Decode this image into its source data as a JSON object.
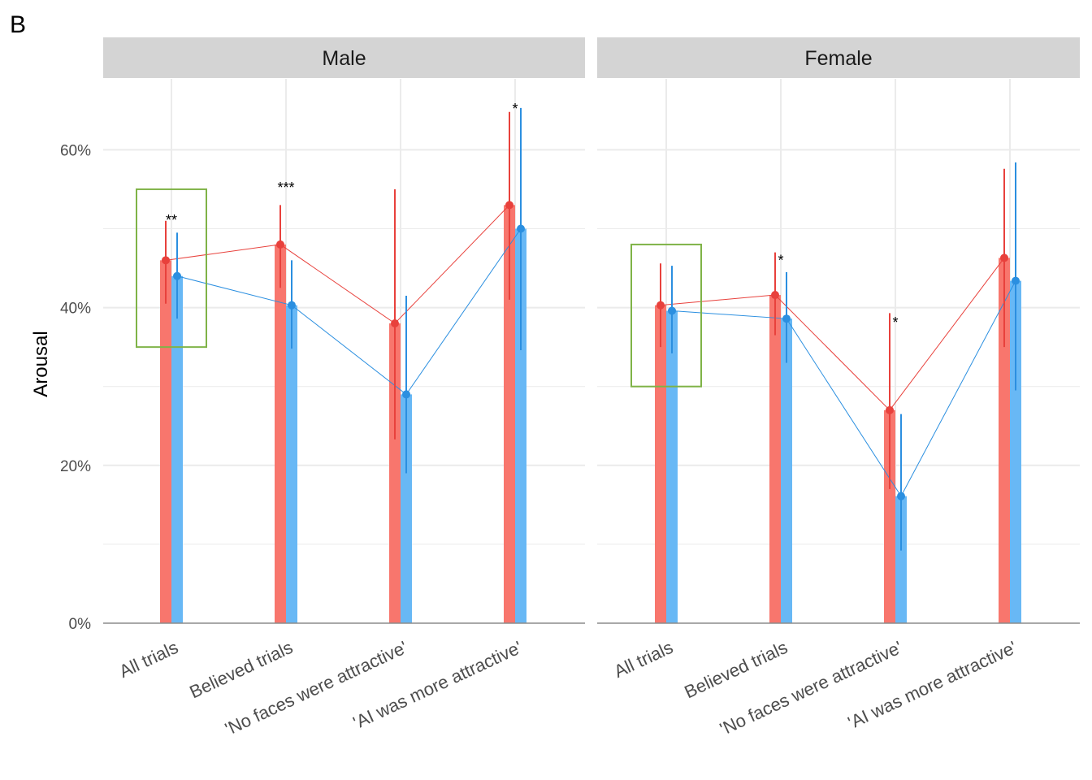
{
  "figure": {
    "panel_label": "B"
  },
  "chart_data": {
    "type": "bar",
    "ylabel": "Arousal",
    "ylim": [
      0,
      69
    ],
    "yticks": [
      0,
      20,
      40,
      60
    ],
    "ytick_labels": [
      "0%",
      "20%",
      "40%",
      "60%"
    ],
    "minor_grid": [
      10,
      30,
      50
    ],
    "grid": true,
    "categories": [
      "All trials",
      "Believed trials",
      "'No faces were attractive'",
      "'AI was more attractive'"
    ],
    "colors": {
      "red_bar": "#F8766D",
      "red_point": "#E8413C",
      "blue_bar": "#68B8F5",
      "blue_point": "#2B8FE0",
      "highlight_box": "#7FB347",
      "strip_bg": "#D4D4D4",
      "grid": "#EBEBEB",
      "axis": "#8C8C8C"
    },
    "panels": [
      {
        "title": "Male",
        "series": [
          {
            "values": [
              46,
              48,
              38,
              53
            ],
            "ci_low": [
              40.5,
              42.5,
              23.3,
              41
            ],
            "ci_high": [
              51,
              53,
              55,
              64.8
            ]
          },
          {
            "values": [
              44,
              40.3,
              29,
              50
            ],
            "ci_low": [
              38.6,
              34.8,
              19,
              34.6
            ],
            "ci_high": [
              49.5,
              46,
              41.5,
              65.3
            ]
          }
        ],
        "significance": [
          "**",
          "***",
          "",
          "*"
        ],
        "sig_y": [
          51.3,
          55.4,
          null,
          65.4
        ],
        "highlight": {
          "category_index": 0,
          "ymin": 35,
          "ymax": 55
        }
      },
      {
        "title": "Female",
        "series": [
          {
            "values": [
              40.3,
              41.6,
              27,
              46.3
            ],
            "ci_low": [
              35,
              36.5,
              17,
              35
            ],
            "ci_high": [
              45.6,
              47,
              39.3,
              57.6
            ]
          },
          {
            "values": [
              39.6,
              38.6,
              16.1,
              43.4
            ],
            "ci_low": [
              34.2,
              33,
              9.2,
              29.5
            ],
            "ci_high": [
              45.3,
              44.5,
              26.5,
              58.4
            ]
          }
        ],
        "significance": [
          "",
          "*",
          "*",
          ""
        ],
        "sig_y": [
          null,
          46.2,
          38.3,
          null
        ],
        "highlight": {
          "category_index": 0,
          "ymin": 30,
          "ymax": 48
        }
      }
    ]
  }
}
